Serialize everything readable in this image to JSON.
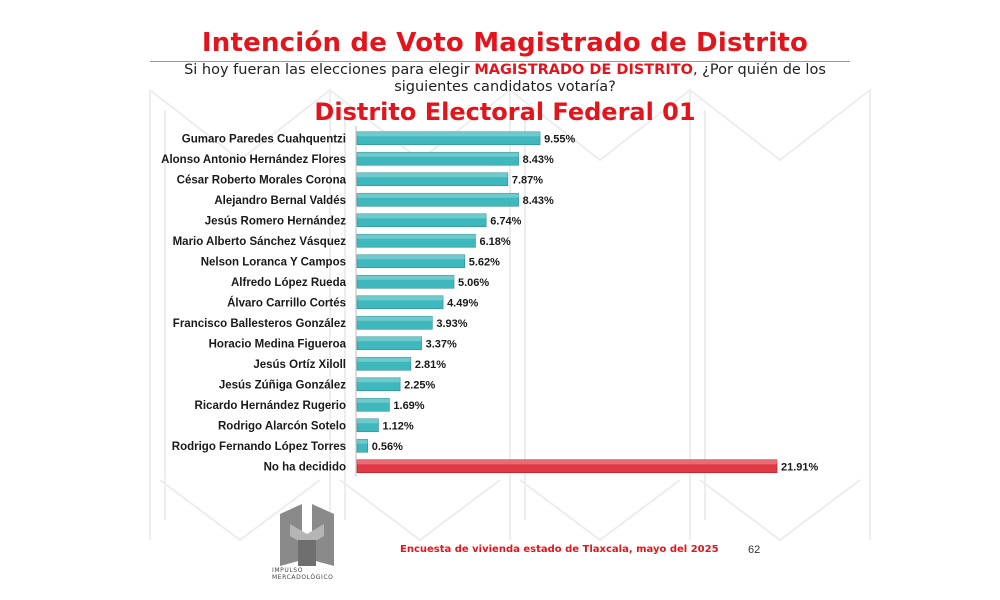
{
  "header": {
    "title": "Intención de Voto Magistrado de Distrito",
    "question_prefix": "Si hoy fueran las elecciones para elegir ",
    "question_highlight": "MAGISTRADO DE DISTRITO",
    "question_suffix": ", ¿Por quién de los siguientes candidatos votaría?",
    "subtitle": "Distrito Electoral Federal 01"
  },
  "colors": {
    "accent_red": "#e3141b",
    "bar_teal": "#3fb8bd",
    "bar_red": "#e23a47"
  },
  "chart_data": {
    "type": "bar",
    "orientation": "horizontal",
    "categories": [
      "Gumaro Paredes Cuahquentzi",
      "Alonso Antonio Hernández Flores",
      "César Roberto Morales Corona",
      "Alejandro Bernal Valdés",
      "Jesús Romero Hernández",
      "Mario Alberto Sánchez Vásquez",
      "Nelson Loranca Y Campos",
      "Alfredo López Rueda",
      "Álvaro Carrillo Cortés",
      "Francisco Ballesteros González",
      "Horacio Medina Figueroa",
      "Jesús Ortíz Xiloll",
      "Jesús Zúñiga González",
      "Ricardo Hernández Rugerio",
      "Rodrigo Alarcón Sotelo",
      "Rodrigo Fernando López Torres",
      "No ha decidido"
    ],
    "values": [
      9.55,
      8.43,
      7.87,
      8.43,
      6.74,
      6.18,
      5.62,
      5.06,
      4.49,
      3.93,
      3.37,
      2.81,
      2.25,
      1.69,
      1.12,
      0.56,
      21.91
    ],
    "value_labels": [
      "9.55%",
      "8.43%",
      "7.87%",
      "8.43%",
      "6.74%",
      "6.18%",
      "5.62%",
      "5.06%",
      "4.49%",
      "3.93%",
      "3.37%",
      "2.81%",
      "2.25%",
      "1.69%",
      "1.12%",
      "0.56%",
      "21.91%"
    ],
    "highlight_category": "No ha decidido",
    "xlim": [
      0,
      21.91
    ],
    "grid": false,
    "legend": "none"
  },
  "footer": {
    "note": "Encuesta de vivienda estado de Tlaxcala, mayo   del 2025",
    "page": "62",
    "logo_text_line1": "IMPULSO",
    "logo_text_line2": "MERCADOLÓGICO"
  }
}
